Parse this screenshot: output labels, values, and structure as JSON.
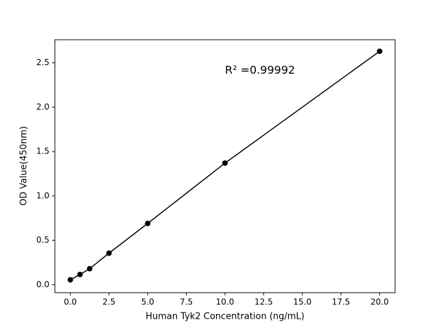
{
  "chart_data": {
    "type": "line",
    "x_label": "Human Tyk2 Concentration (ng/mL)",
    "y_label": "OD Value(450nm)",
    "annotation": "R² =0.99992",
    "x": [
      0,
      0.625,
      1.25,
      2.5,
      5,
      10,
      20
    ],
    "series": [
      {
        "color": "#000000",
        "values": [
          0.055,
          0.115,
          0.18,
          0.355,
          0.69,
          1.37,
          2.63
        ]
      }
    ],
    "xlim": [
      -1,
      21
    ],
    "ylim": [
      -0.09,
      2.76
    ],
    "xticks": [
      {
        "value": 0,
        "label": "0.0"
      },
      2.5,
      {
        "value": 5,
        "label": "5.0"
      },
      7.5,
      {
        "value": 10,
        "label": "10.0"
      },
      12.5,
      {
        "value": 15,
        "label": "15.0"
      },
      17.5,
      {
        "value": 20,
        "label": "20.0"
      }
    ],
    "yticks": [
      {
        "value": 0,
        "label": "0.0"
      },
      0.5,
      {
        "value": 1,
        "label": "1.0"
      },
      1.5,
      {
        "value": 2,
        "label": "2.0"
      },
      2.5
    ]
  }
}
